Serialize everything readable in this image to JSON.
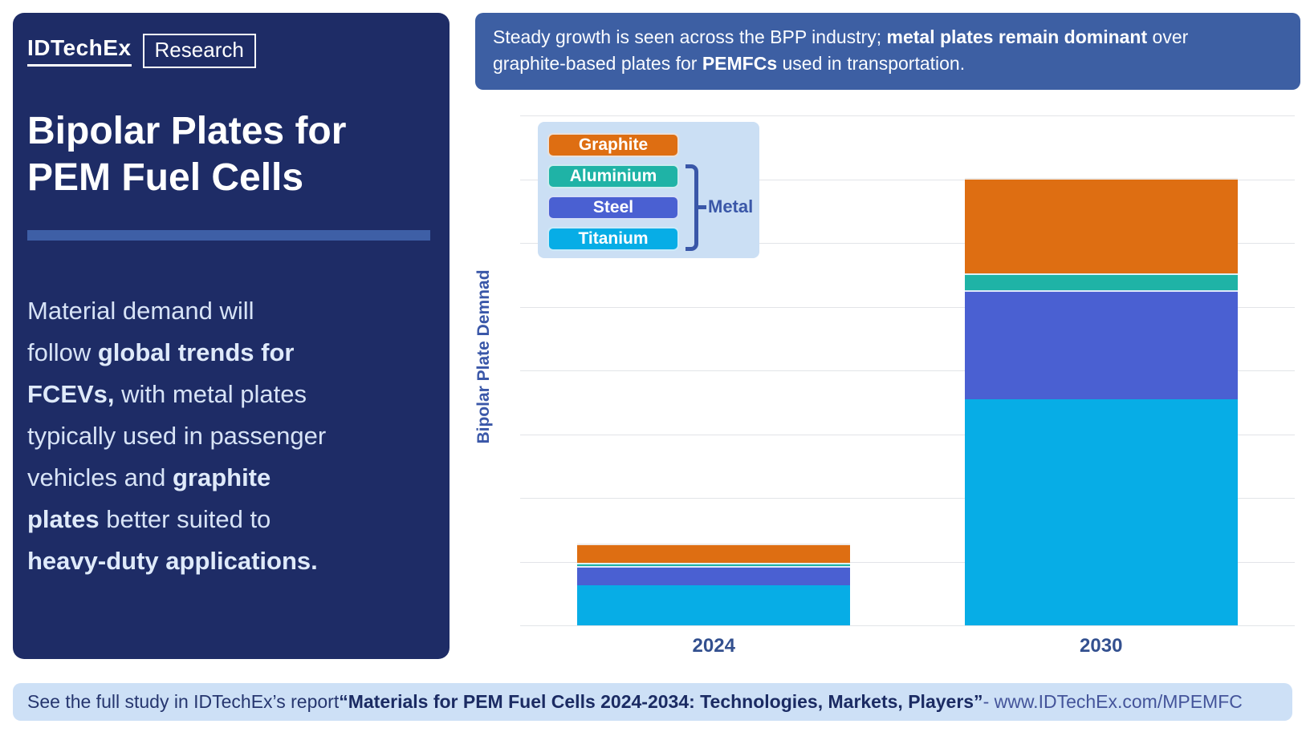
{
  "theme": {
    "navy": "#1E2C66",
    "banner": "#3D5FA3",
    "accent": "#3E5FA6",
    "lighttext": "#D7E3F6",
    "panel": "#CBDFF4",
    "footerbg": "#CDE0F6",
    "axisblue": "#3A57A8",
    "tick": "#33508F",
    "grid": "#E2E4E8"
  },
  "card": {
    "brand": {
      "logo": "IDTechEx",
      "suffix": "Research"
    },
    "title": "Bipolar Plates for PEM Fuel Cells",
    "paragraph_lines": [
      [
        {
          "t": "Material demand will"
        }
      ],
      [
        {
          "t": "follow "
        },
        {
          "t": "global trends for",
          "b": true
        }
      ],
      [
        {
          "t": "FCEVs,",
          "b": true
        },
        {
          "t": " with metal plates"
        }
      ],
      [
        {
          "t": "typically used in passenger"
        }
      ],
      [
        {
          "t": "vehicles and "
        },
        {
          "t": "graphite",
          "b": true
        }
      ],
      [
        {
          "t": "plates",
          "b": true
        },
        {
          "t": " better suited to"
        }
      ],
      [
        {
          "t": "heavy-duty applications.",
          "b": true
        }
      ]
    ]
  },
  "banner": {
    "lines": [
      [
        {
          "t": "Steady growth is seen across the BPP industry; "
        },
        {
          "t": "metal plates remain dominant",
          "b": true
        },
        {
          "t": " over"
        }
      ],
      [
        {
          "t": "graphite-based plates for "
        },
        {
          "t": "PEMFCs",
          "b": true
        },
        {
          "t": " used in transportation."
        }
      ]
    ]
  },
  "footer": {
    "segments": [
      {
        "t": "See the full study in IDTechEx’s report "
      },
      {
        "t": "“Materials for PEM Fuel Cells 2024-2034: Technologies, Markets, Players”",
        "b": true
      },
      {
        "t": " - www.IDTechEx.com/MPEMFC",
        "muted": true
      }
    ]
  },
  "chart_data": {
    "type": "bar",
    "stacked": true,
    "title": "",
    "xlabel": "",
    "ylabel": "Bipolar Plate Demnad",
    "categories": [
      "2024",
      "2030"
    ],
    "series": [
      {
        "name": "Graphite",
        "color": "#DE6E12",
        "values": [
          0.3,
          1.5
        ]
      },
      {
        "name": "Aluminium",
        "color": "#1FB3A6",
        "values": [
          0.05,
          0.26
        ]
      },
      {
        "name": "Steel",
        "color": "#4A60D2",
        "values": [
          0.3,
          1.71
        ]
      },
      {
        "name": "Titanium",
        "color": "#07ADE6",
        "values": [
          0.63,
          3.55
        ]
      }
    ],
    "stack_order_bottom_up": [
      "Titanium",
      "Steel",
      "Aluminium",
      "Graphite"
    ],
    "ylim": [
      0,
      8
    ],
    "grid_step": 1,
    "gridlines": true,
    "y_tick_labels_shown": false,
    "values_unit": "relative units estimated from unlabeled gridlines (1 unit = 1 gridline interval)",
    "legend": {
      "position": "top-left",
      "group_label": "Metal",
      "grouped_series": [
        "Aluminium",
        "Steel",
        "Titanium"
      ]
    }
  }
}
